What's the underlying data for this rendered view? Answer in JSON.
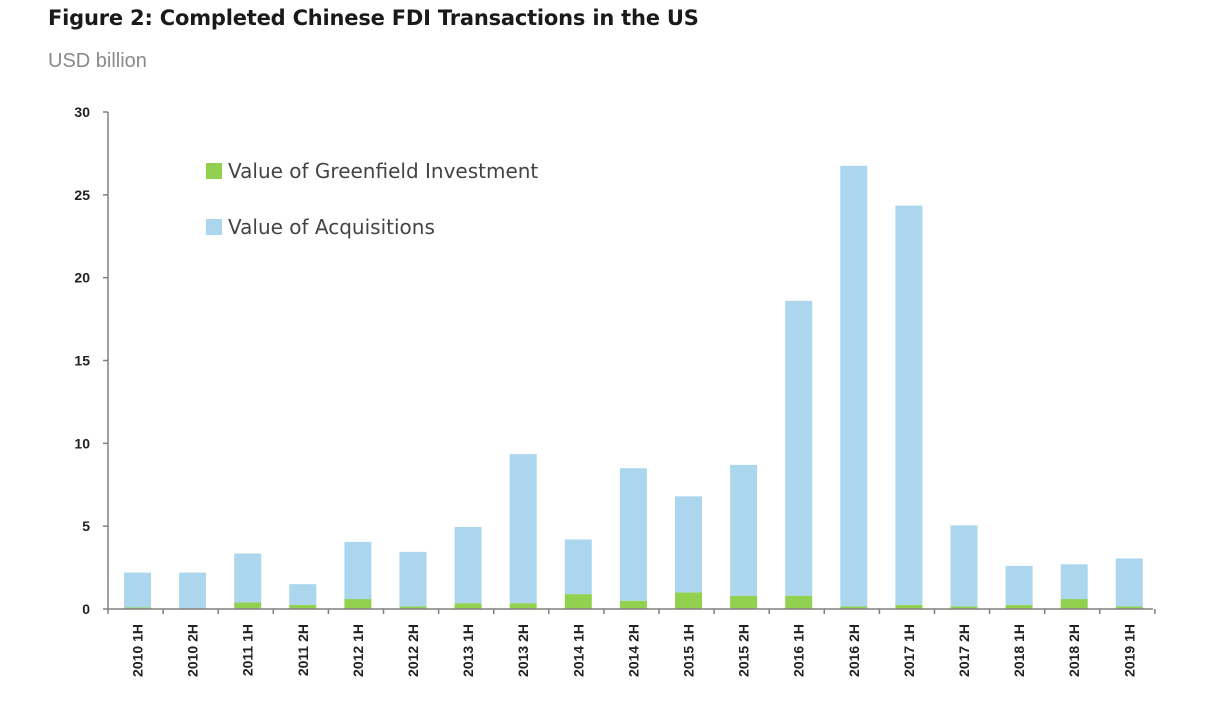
{
  "title": "Figure 2: Completed Chinese FDI Transactions in the US",
  "subtitle": "USD billion",
  "colors": {
    "greenfield": "#92d050",
    "acquisitions": "#acd6ee",
    "axis": "#808080"
  },
  "chart_data": {
    "type": "bar",
    "stacked": true,
    "title": "Figure 2: Completed Chinese FDI Transactions in the US",
    "ylabel": "USD billion",
    "ylim": [
      0,
      30
    ],
    "yticks": [
      0,
      5,
      10,
      15,
      20,
      25,
      30
    ],
    "legend": "top-left",
    "grid": false,
    "categories": [
      "2010 1H",
      "2010 2H",
      "2011 1H",
      "2011 2H",
      "2012 1H",
      "2012 2H",
      "2013 1H",
      "2013 2H",
      "2014 1H",
      "2014 2H",
      "2015 1H",
      "2015 2H",
      "2016 1H",
      "2016 2H",
      "2017 1H",
      "2017 2H",
      "2018 1H",
      "2018 2H",
      "2019 1H"
    ],
    "series": [
      {
        "name": "Value of Greenfield Investment",
        "values": [
          0.1,
          0.05,
          0.4,
          0.25,
          0.6,
          0.15,
          0.35,
          0.35,
          0.9,
          0.5,
          1.0,
          0.8,
          0.8,
          0.15,
          0.25,
          0.15,
          0.25,
          0.6,
          0.15
        ]
      },
      {
        "name": "Value of Acquisitions",
        "values": [
          2.1,
          2.15,
          2.95,
          1.25,
          3.45,
          3.3,
          4.6,
          9.0,
          3.3,
          8.0,
          5.8,
          7.9,
          17.8,
          26.6,
          24.1,
          4.9,
          2.35,
          2.1,
          2.9
        ]
      }
    ]
  }
}
